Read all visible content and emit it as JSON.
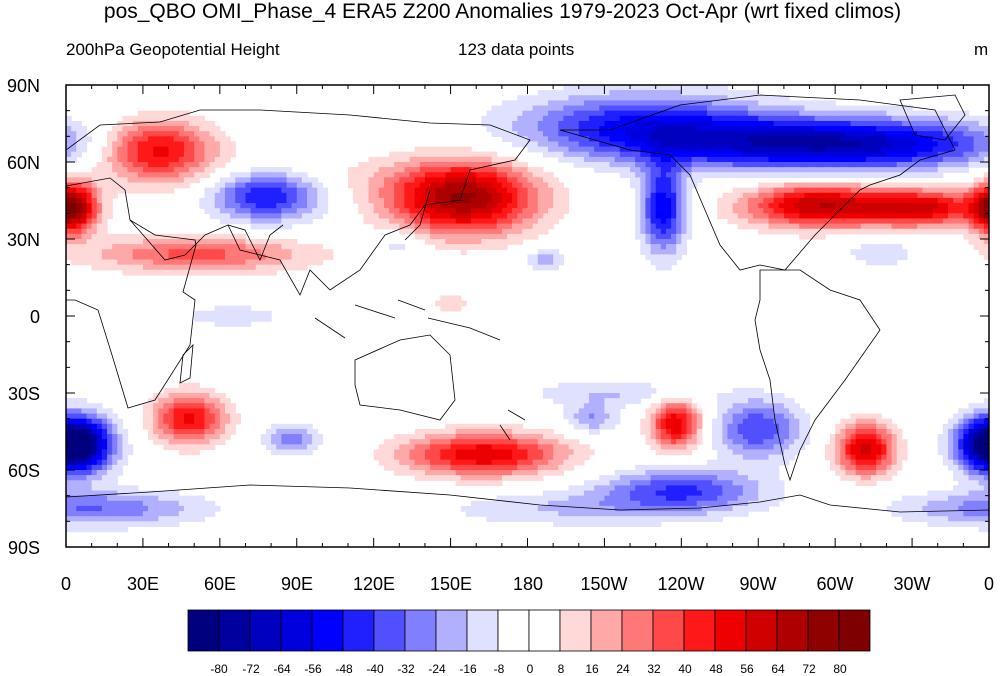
{
  "figure": {
    "title": "pos_QBO OMI_Phase_4 ERA5 Z200 Anomalies 1979-2023 Oct-Apr (wrt fixed climos)",
    "left_string": "200hPa Geopotential Height",
    "center_string": "123 data points",
    "right_string": "m"
  },
  "axes": {
    "y_labels": [
      "90N",
      "60N",
      "30N",
      "0",
      "30S",
      "60S",
      "90S"
    ],
    "x_labels": [
      "0",
      "30E",
      "60E",
      "90E",
      "120E",
      "150E",
      "180",
      "150W",
      "120W",
      "90W",
      "60W",
      "30W",
      "0"
    ]
  },
  "colorbar": {
    "labels": [
      "-80",
      "-72",
      "-64",
      "-56",
      "-48",
      "-40",
      "-32",
      "-24",
      "-16",
      "-8",
      "0",
      "8",
      "16",
      "24",
      "32",
      "40",
      "48",
      "56",
      "64",
      "72",
      "80"
    ],
    "colors": [
      "#00007f",
      "#00009f",
      "#0000bf",
      "#0000df",
      "#0000ff",
      "#2020ff",
      "#5050ff",
      "#8080ff",
      "#b0b0ff",
      "#e0e0ff",
      "#ffffff",
      "#ffffff",
      "#ffd8d8",
      "#ffa8a8",
      "#ff7878",
      "#ff4848",
      "#ff1818",
      "#ef0000",
      "#cf0000",
      "#af0000",
      "#8f0000",
      "#7f0000"
    ]
  },
  "chart_data": {
    "type": "heatmap",
    "title": "pos_QBO OMI_Phase_4 ERA5 Z200 Anomalies 1979-2023 Oct-Apr (wrt fixed climos)",
    "variable": "200hPa Geopotential Height",
    "units": "m",
    "n_points": 123,
    "lon_range": [
      0,
      360
    ],
    "lat_range": [
      -90,
      90
    ],
    "contour_levels": [
      -80,
      -72,
      -64,
      -56,
      -48,
      -40,
      -32,
      -24,
      -16,
      -8,
      0,
      8,
      16,
      24,
      32,
      40,
      48,
      56,
      64,
      72,
      80
    ],
    "anomaly_centers": [
      {
        "lon": 35,
        "lat": 65,
        "value": 55,
        "sx": 16,
        "sy": 8
      },
      {
        "lon": 52,
        "lat": 24,
        "value": 35,
        "sx": 30,
        "sy": 5
      },
      {
        "lon": 78,
        "lat": 47,
        "value": -55,
        "sx": 16,
        "sy": 7
      },
      {
        "lon": 155,
        "lat": 46,
        "value": 72,
        "sx": 20,
        "sy": 10
      },
      {
        "lon": 225,
        "lat": 74,
        "value": -48,
        "sx": 34,
        "sy": 9
      },
      {
        "lon": 300,
        "lat": 67,
        "value": -72,
        "sx": 45,
        "sy": 7
      },
      {
        "lon": 233,
        "lat": 42,
        "value": -55,
        "sx": 6,
        "sy": 12
      },
      {
        "lon": 293,
        "lat": 43,
        "value": 62,
        "sx": 20,
        "sy": 6
      },
      {
        "lon": 334,
        "lat": 42,
        "value": 55,
        "sx": 16,
        "sy": 5
      },
      {
        "lon": 5,
        "lat": 42,
        "value": 40,
        "sx": 6,
        "sy": 7
      },
      {
        "lon": 360,
        "lat": 42,
        "value": 40,
        "sx": 6,
        "sy": 7
      },
      {
        "lon": 5,
        "lat": -50,
        "value": -62,
        "sx": 10,
        "sy": 8
      },
      {
        "lon": 360,
        "lat": -50,
        "value": -55,
        "sx": 9,
        "sy": 7
      },
      {
        "lon": 48,
        "lat": -40,
        "value": 50,
        "sx": 10,
        "sy": 7
      },
      {
        "lon": 88,
        "lat": -48,
        "value": -32,
        "sx": 7,
        "sy": 4
      },
      {
        "lon": 163,
        "lat": -54,
        "value": 55,
        "sx": 22,
        "sy": 6
      },
      {
        "lon": 205,
        "lat": -40,
        "value": -24,
        "sx": 7,
        "sy": 4
      },
      {
        "lon": 238,
        "lat": -42,
        "value": 55,
        "sx": 7,
        "sy": 7
      },
      {
        "lon": 270,
        "lat": -44,
        "value": -40,
        "sx": 12,
        "sy": 8
      },
      {
        "lon": 312,
        "lat": -52,
        "value": 60,
        "sx": 8,
        "sy": 7
      },
      {
        "lon": 240,
        "lat": -68,
        "value": -40,
        "sx": 22,
        "sy": 6
      },
      {
        "lon": 10,
        "lat": -75,
        "value": -32,
        "sx": 30,
        "sy": 5
      },
      {
        "lon": 85,
        "lat": 52,
        "value": 10,
        "sx": 45,
        "sy": 8
      },
      {
        "lon": 130,
        "lat": 28,
        "value": -16,
        "sx": 7,
        "sy": 4
      },
      {
        "lon": 187,
        "lat": 22,
        "value": -24,
        "sx": 5,
        "sy": 3
      },
      {
        "lon": 318,
        "lat": 25,
        "value": -16,
        "sx": 10,
        "sy": 4
      },
      {
        "lon": 150,
        "lat": 5,
        "value": 16,
        "sx": 5,
        "sy": 3
      },
      {
        "lon": 65,
        "lat": 0,
        "value": -10,
        "sx": 25,
        "sy": 5
      },
      {
        "lon": 215,
        "lat": -30,
        "value": -16,
        "sx": 25,
        "sy": 4
      },
      {
        "lon": 195,
        "lat": -75,
        "value": -16,
        "sx": 35,
        "sy": 5
      }
    ]
  }
}
